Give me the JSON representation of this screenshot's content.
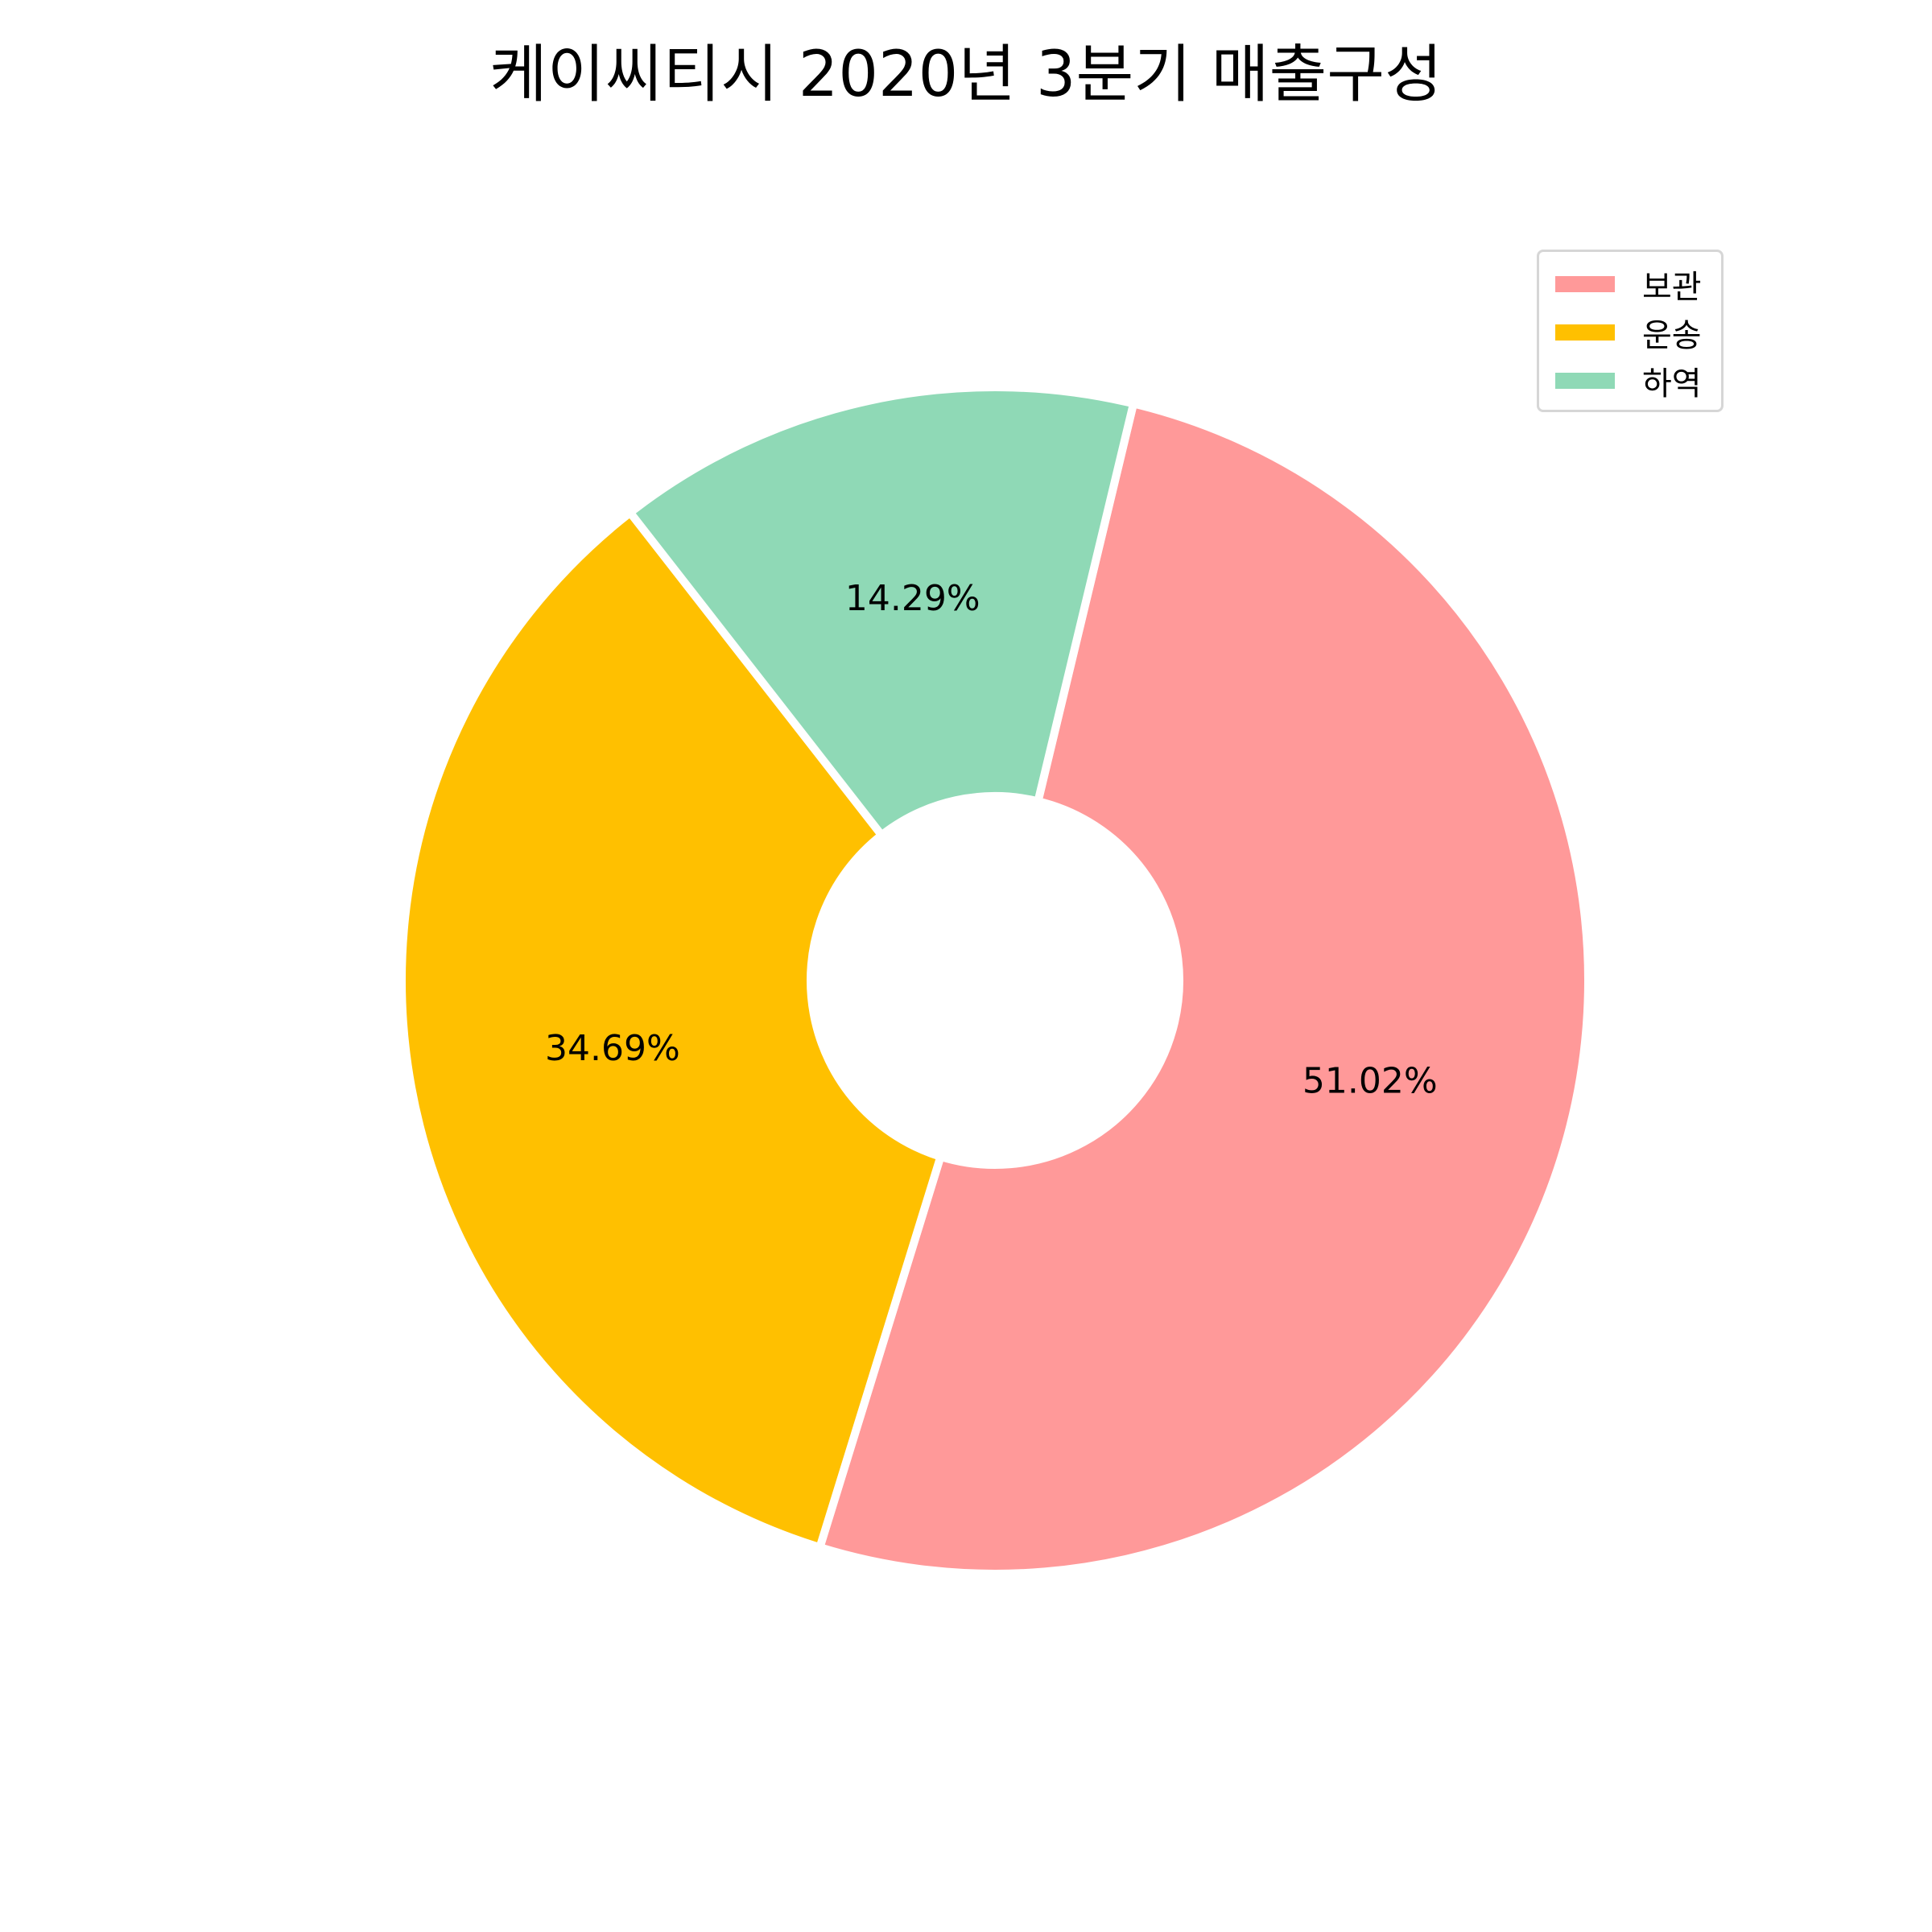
{
  "chart_data": {
    "type": "pie",
    "title": "케이씨티시 2020년 3분기 매출구성",
    "categories": [
      "보관",
      "운송",
      "하역"
    ],
    "values": [
      51.02,
      34.69,
      14.29
    ],
    "labels": [
      "51.02%",
      "34.69%",
      "14.29%"
    ],
    "colors": [
      "#ff9999",
      "#ffc000",
      "#8fd9b6"
    ],
    "donut": true,
    "legend_position": "top-right"
  }
}
